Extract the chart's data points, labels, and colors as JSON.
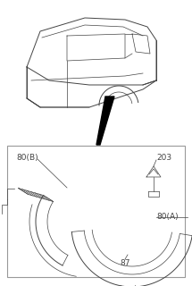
{
  "bg_color": "#ffffff",
  "line_color": "#444444",
  "box_color": "#999999",
  "labels": {
    "80B": "80(B)",
    "203": "203",
    "80A": "80(A)",
    "87": "87"
  }
}
